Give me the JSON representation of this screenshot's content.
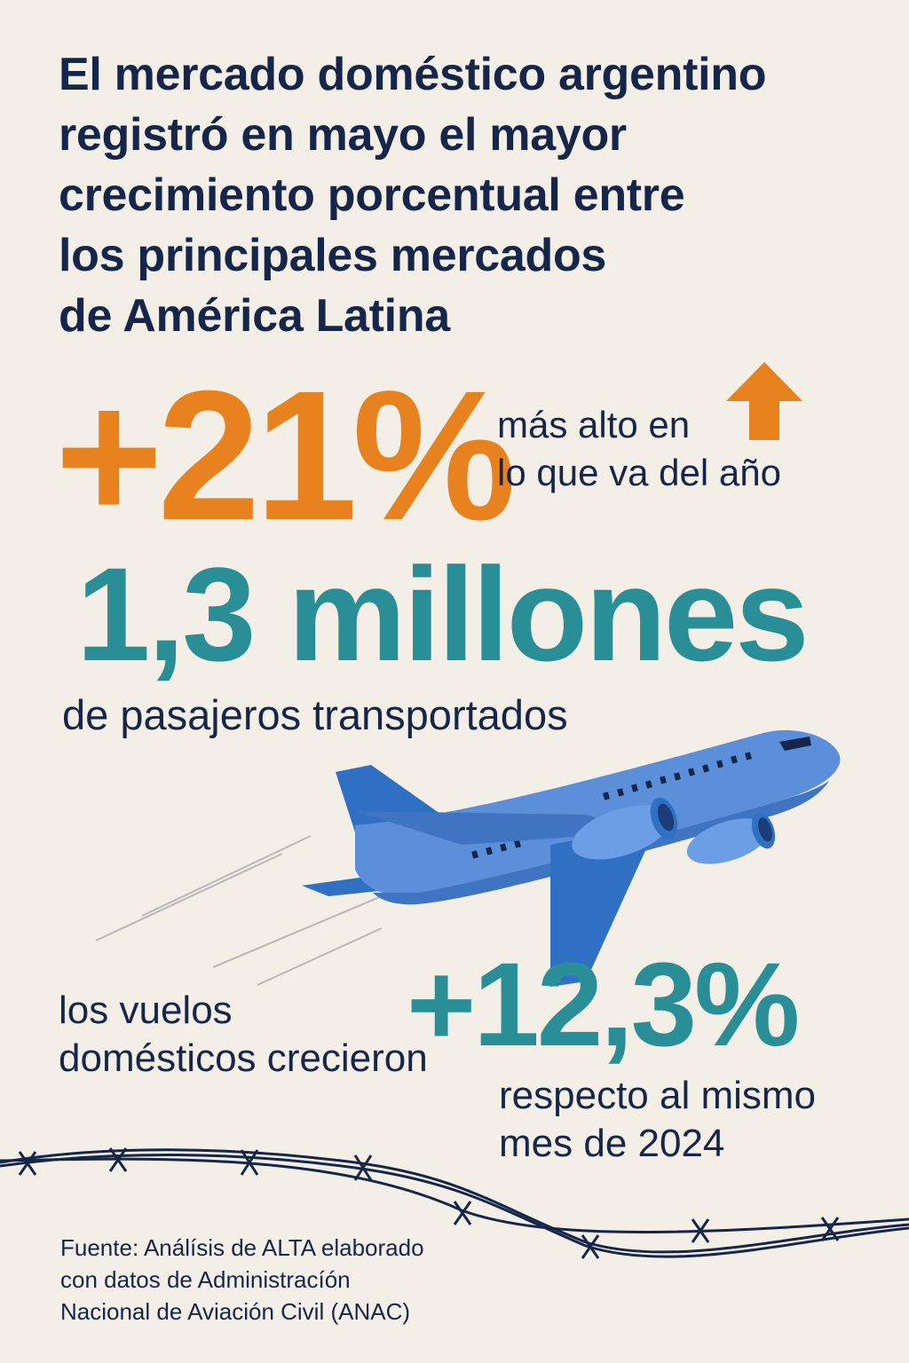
{
  "headline": {
    "lines": [
      "El mercado doméstico argentino",
      "registró en mayo el mayor",
      "crecimiento porcentual entre",
      "los principales mercados",
      "de América Latina"
    ]
  },
  "stat_growth": {
    "value": "+21%",
    "note_lines": [
      "más alto en",
      "lo que va del año"
    ],
    "icon": "arrow-up-icon",
    "color": "#e8821f"
  },
  "stat_passengers": {
    "value": "1,3 millones",
    "note": "de pasajeros transportados",
    "color": "#2a8e96"
  },
  "stat_flights": {
    "intro_lines": [
      "los vuelos",
      "domésticos crecieron"
    ],
    "value": "+12,3%",
    "note_lines": [
      "respecto al mismo",
      "mes de 2024"
    ],
    "color": "#2a8e96"
  },
  "illustration": {
    "icon": "airplane-icon",
    "decoration": "barbed-wire-icon"
  },
  "source": {
    "lines": [
      "Fuente: Análísis de ALTA elaborado",
      "con datos de Administracíón",
      "Nacional de Aviación Civil (ANAC)"
    ]
  },
  "colors": {
    "background": "#f4efe6",
    "text": "#15264a",
    "orange": "#e8821f",
    "teal": "#2a8e96",
    "plane_blue": "#5b8fd9"
  }
}
